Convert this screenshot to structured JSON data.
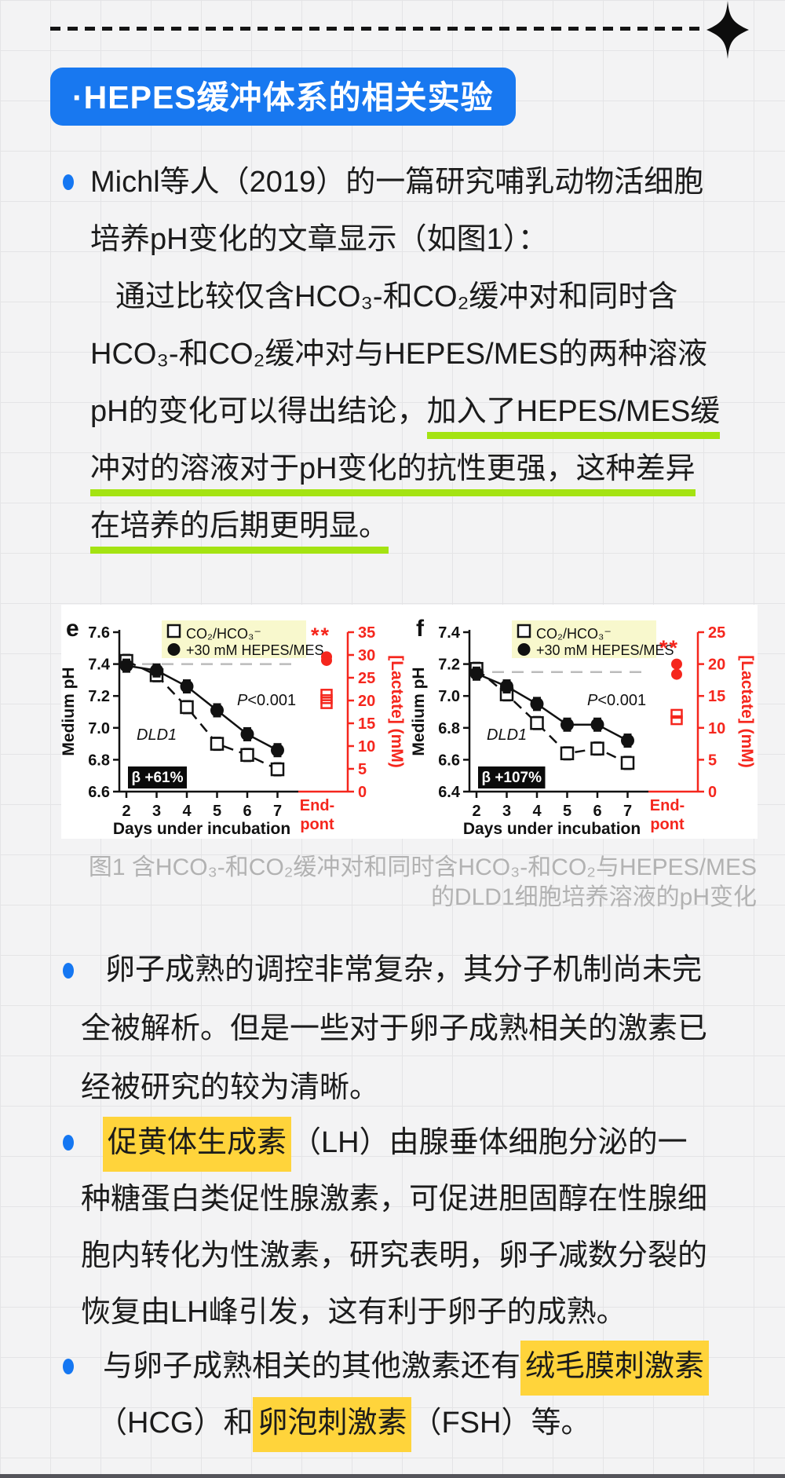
{
  "header": {
    "badge_label": "·HEPES缓冲体系的相关实验"
  },
  "colors": {
    "accent_blue": "#1878f0",
    "bullet_blue": "#1577f2",
    "highlight_yellow": "#ffd43b",
    "underline_green": "#a4e312",
    "chart_red": "#f5261d",
    "legend_bg": "#f8f8cd",
    "caption_gray": "#b2b2b2"
  },
  "bullets": {
    "b1": {
      "lines": {
        "l1": "Michl等人（2019）的一篇研究哺乳动物活细胞",
        "l2": "培养pH变化的文章显示（如图1）：",
        "l3": "通过比较仅含HCO₃-和CO₂缓冲对和同时含",
        "l4": "HCO₃-和CO₂缓冲对与HEPES/MES的两种溶液",
        "l5a": "pH的变化可以得出结论，",
        "l5b": "加入了HEPES/MES缓",
        "l6": "冲对的溶液对于pH变化的抗性更强，这种差异",
        "l7": "在培养的后期更明显。"
      }
    },
    "b2": {
      "lines": {
        "l1": "卵子成熟的调控非常复杂，其分子机制尚未完",
        "l2": "全被解析。但是一些对于卵子成熟相关的激素已",
        "l3": "经被研究的较为清晰。"
      }
    },
    "b3": {
      "lines": {
        "l1a": "促黄体生成素",
        "l1b": "（LH）由腺垂体细胞分泌的一",
        "l2": "种糖蛋白类促性腺激素，可促进胆固醇在性腺细",
        "l3": "胞内转化为性激素，研究表明，卵子减数分裂的",
        "l4": "恢复由LH峰引发，这有利于卵子的成熟。"
      }
    },
    "b4": {
      "lines": {
        "l1a": "与卵子成熟相关的其他激素还有",
        "l1b": "绒毛膜刺激素",
        "l2a": "（HCG）和",
        "l2b": "卵泡刺激素",
        "l2c": "（FSH）等。"
      }
    }
  },
  "figure": {
    "caption_line1": "图1 含HCO₃-和CO₂缓冲对和同时含HCO₃-和CO₂与HEPES/MES",
    "caption_line2": "的DLD1细胞培养溶液的pH变化"
  },
  "chart_data": [
    {
      "type": "line",
      "panel": "e",
      "x": [
        2,
        3,
        4,
        5,
        6,
        7
      ],
      "xlabel": "Days under incubation",
      "ylabel": "Medium pH",
      "ylim": [
        6.6,
        7.6
      ],
      "yticks": [
        "6.6",
        "6.8",
        "7.0",
        "7.2",
        "7.4",
        "7.6"
      ],
      "y2label": "[Lactate] (mM)",
      "y2lim": [
        0,
        35
      ],
      "y2ticks": [
        "0",
        "5",
        "10",
        "15",
        "20",
        "25",
        "30",
        "35"
      ],
      "baseline_dash_pH": 7.4,
      "legend": [
        {
          "marker": "open-square",
          "label": "CO₂/HCO₃⁻"
        },
        {
          "marker": "filled-circle",
          "label": "+30 mM HEPES/MES"
        }
      ],
      "series": [
        {
          "name": "CO₂/HCO₃⁻",
          "marker": "open-square",
          "line": "dashed",
          "values": [
            7.42,
            7.33,
            7.13,
            6.9,
            6.83,
            6.74
          ]
        },
        {
          "name": "+30 mM HEPES/MES",
          "marker": "filled-circle",
          "line": "solid",
          "values": [
            7.39,
            7.36,
            7.26,
            7.11,
            6.96,
            6.86
          ]
        }
      ],
      "annotations": {
        "p_value": "P<0.001",
        "cell_line": "DLD1",
        "beta": "β +61%",
        "significance": "**"
      },
      "endpoint": {
        "label_line1": "End-",
        "label_line2": "pont",
        "lactate_circles": [
          29.6,
          28.8
        ],
        "lactate_squares": [
          21.5,
          20.3,
          19.2
        ]
      }
    },
    {
      "type": "line",
      "panel": "f",
      "x": [
        2,
        3,
        4,
        5,
        6,
        7
      ],
      "xlabel": "Days under incubation",
      "ylabel": "Medium pH",
      "ylim": [
        6.4,
        7.4
      ],
      "yticks": [
        "6.4",
        "6.6",
        "6.8",
        "7.0",
        "7.2",
        "7.4"
      ],
      "y2label": "[Lactate] (mM)",
      "y2lim": [
        0,
        25
      ],
      "y2ticks": [
        "0",
        "5",
        "10",
        "15",
        "20",
        "25"
      ],
      "baseline_dash_pH": 7.15,
      "legend": [
        {
          "marker": "open-square",
          "label": "CO₂/HCO₃⁻"
        },
        {
          "marker": "filled-circle",
          "label": "+30 mM HEPES/MES"
        }
      ],
      "series": [
        {
          "name": "CO₂/HCO₃⁻",
          "marker": "open-square",
          "line": "dashed",
          "values": [
            7.17,
            7.01,
            6.83,
            6.64,
            6.67,
            6.58
          ]
        },
        {
          "name": "+30 mM HEPES/MES",
          "marker": "filled-circle",
          "line": "solid",
          "values": [
            7.14,
            7.06,
            6.95,
            6.82,
            6.82,
            6.72
          ]
        }
      ],
      "annotations": {
        "p_value": "P<0.001",
        "cell_line": "DLD1",
        "beta": "β +107%",
        "significance": "**"
      },
      "endpoint": {
        "label_line1": "End-",
        "label_line2": "pont",
        "lactate_circles": [
          20.0,
          18.4
        ],
        "lactate_squares": [
          12.2,
          11.2
        ]
      }
    }
  ]
}
